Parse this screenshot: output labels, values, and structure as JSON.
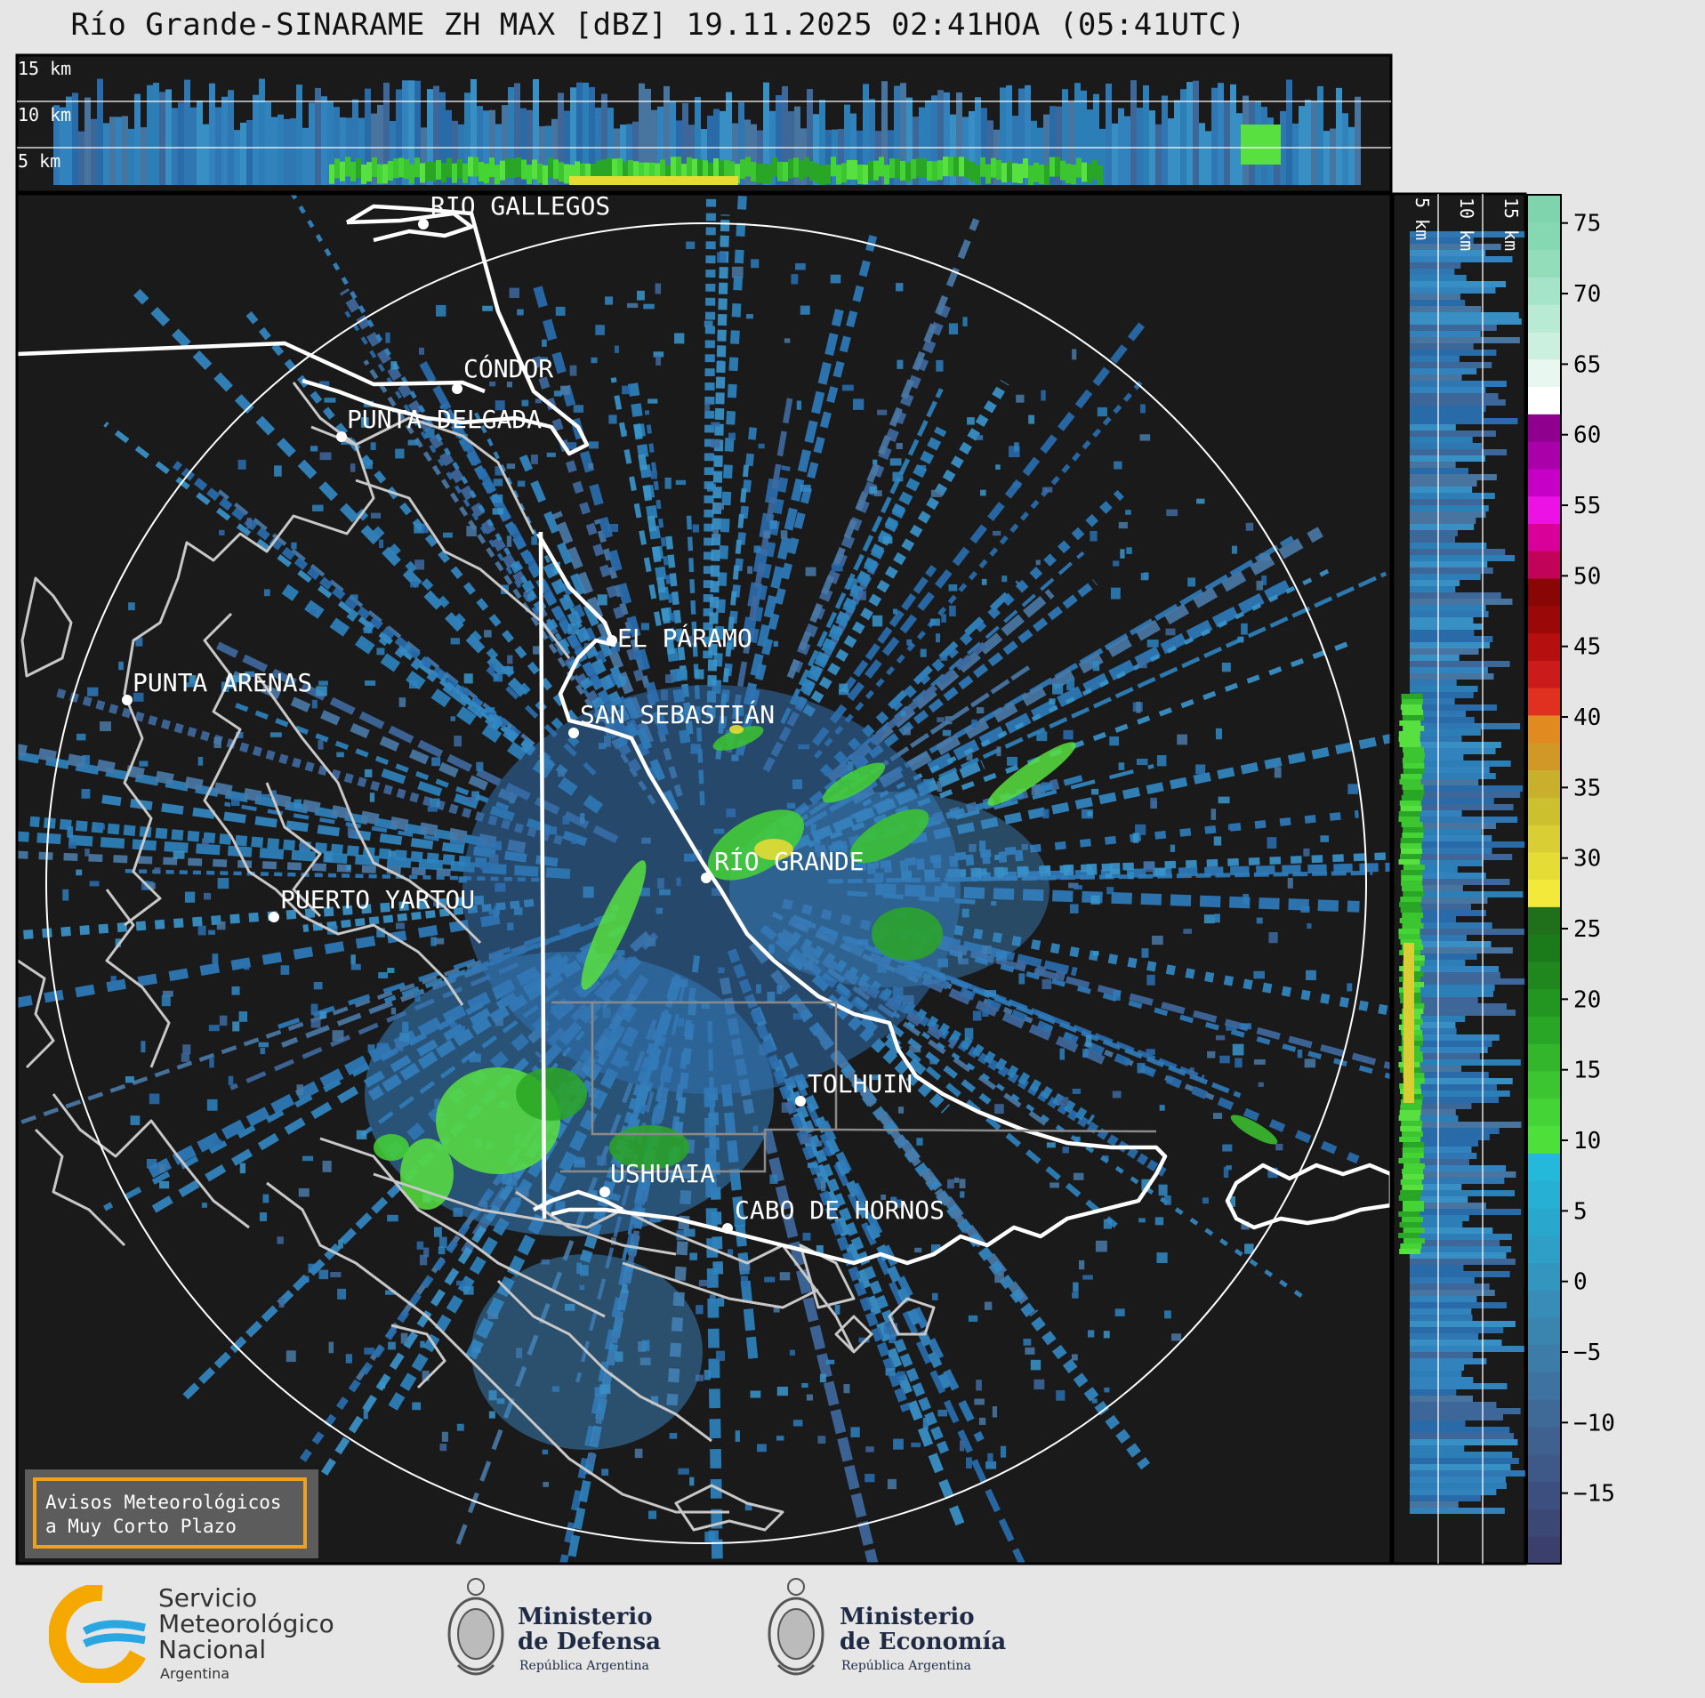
{
  "title": "Río Grande-SINARAME ZH MAX [dBZ] 19.11.2025 02:41HOA (05:41UTC)",
  "top_panel": {
    "height_labels": [
      "15 km",
      "10 km",
      "5 km"
    ]
  },
  "side_panel": {
    "height_labels": [
      "5 km",
      "10 km",
      "15 km"
    ]
  },
  "map": {
    "background": "#1a1a1a",
    "range_ring_color": "#ffffff",
    "cities": [
      {
        "name": "RÍO GALLEGOS"
      },
      {
        "name": "CÓNDOR"
      },
      {
        "name": "PUNTA DELGADA"
      },
      {
        "name": "EL PÁRAMO"
      },
      {
        "name": "PUNTA ARENAS"
      },
      {
        "name": "SAN SEBASTIÁN"
      },
      {
        "name": "RÍO GRANDE"
      },
      {
        "name": "PUERTO YARTOU"
      },
      {
        "name": "TOLHUIN"
      },
      {
        "name": "USHUAIA"
      },
      {
        "name": "CABO DE HORNOS"
      }
    ],
    "warning_box": {
      "line1": "Avisos Meteorológicos",
      "line2": "a Muy Corto Plazo",
      "border_color": "#f0a020"
    }
  },
  "colorbar": {
    "tick_labels": [
      "75",
      "70",
      "65",
      "60",
      "55",
      "50",
      "45",
      "40",
      "35",
      "30",
      "25",
      "20",
      "15",
      "10",
      "5",
      "0",
      "−5",
      "−10",
      "−15"
    ],
    "min": -20,
    "max": 77
  },
  "footer": {
    "smn": {
      "line1": "Servicio",
      "line2": "Meteorológico",
      "line3": "Nacional",
      "line4": "Argentina"
    },
    "defensa": {
      "line1": "Ministerio",
      "line2": "de Defensa",
      "sub": "República Argentina"
    },
    "economia": {
      "line1": "Ministerio",
      "line2": "de Economía",
      "sub": "República Argentina"
    }
  }
}
